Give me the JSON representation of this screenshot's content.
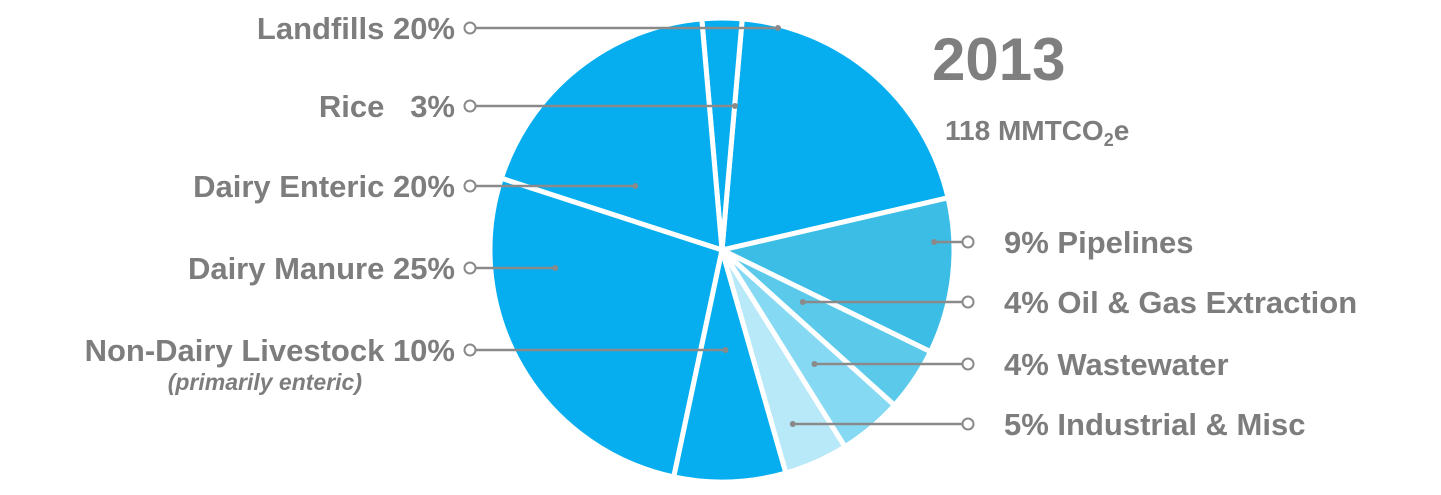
{
  "chart_data": {
    "type": "pie",
    "title": "2013",
    "subtitle": {
      "main": "118 MMTCO",
      "subscript": "2",
      "suffix": "e"
    },
    "slices": [
      {
        "label": "Landfills",
        "value": 20,
        "value_text": "20%",
        "display": "Landfills 20%",
        "color": "#06aef0",
        "side": "left"
      },
      {
        "label": "Rice",
        "value": 3,
        "value_text": "3%",
        "display": "Rice   3%",
        "color": "#06aef0",
        "side": "left"
      },
      {
        "label": "Dairy Enteric",
        "value": 20,
        "value_text": "20%",
        "display": "Dairy Enteric 20%",
        "color": "#06aef0",
        "side": "left"
      },
      {
        "label": "Dairy Manure",
        "value": 25,
        "value_text": "25%",
        "display": "Dairy Manure 25%",
        "color": "#06aef0",
        "side": "left"
      },
      {
        "label": "Non-Dairy Livestock",
        "value": 10,
        "value_text": "10%",
        "display": "Non-Dairy Livestock 10%",
        "note": "(primarily enteric)",
        "color": "#06aef0",
        "side": "left"
      },
      {
        "label": "Pipelines",
        "value": 9,
        "value_text": "9%",
        "display": "9% Pipelines",
        "color": "#3bbde6",
        "side": "right"
      },
      {
        "label": "Oil & Gas Extraction",
        "value": 4,
        "value_text": "4%",
        "display": "4% Oil & Gas Extraction",
        "color": "#5ac9ea",
        "side": "right"
      },
      {
        "label": "Wastewater",
        "value": 4,
        "value_text": "4%",
        "display": "4% Wastewater",
        "color": "#86d9f3",
        "side": "right"
      },
      {
        "label": "Industrial & Misc",
        "value": 5,
        "value_text": "5%",
        "display": "5% Industrial & Misc",
        "color": "#b8e9f9",
        "side": "right"
      }
    ],
    "colors": {
      "label_text": "#7d7d7d",
      "leader_line": "#8a8a8a",
      "slice_border": "#ffffff"
    },
    "legend": "none (callout labels)"
  }
}
